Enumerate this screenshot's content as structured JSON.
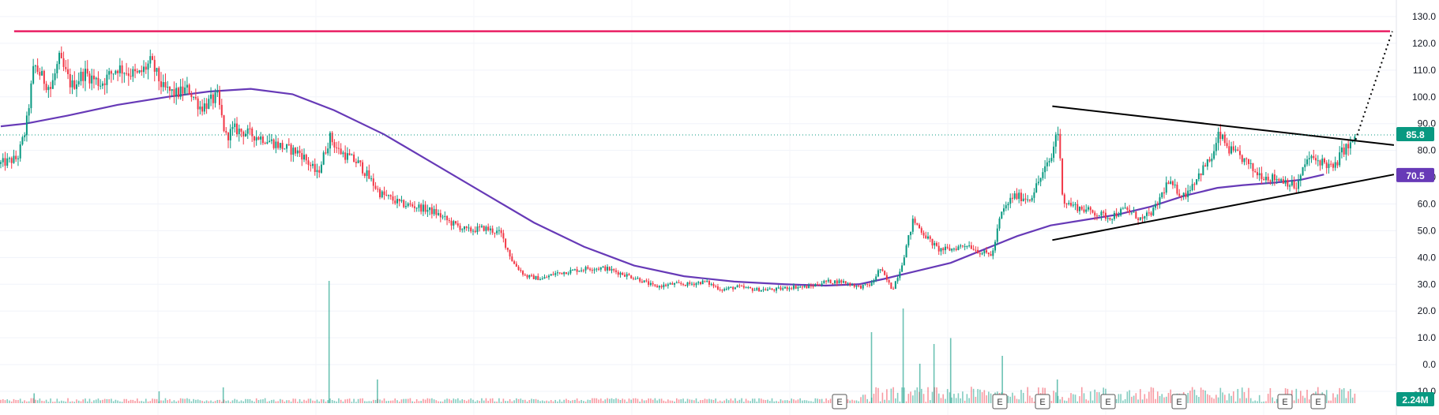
{
  "chart_data": {
    "type": "candlestick",
    "y_axis": {
      "position": "right",
      "ticks": [
        "130.0",
        "120.0",
        "110.0",
        "100.0",
        "90.0",
        "80.0",
        "70.0",
        "60.0",
        "50.0",
        "40.0",
        "30.0",
        "20.0",
        "10.0",
        "0.0",
        "-10.0"
      ],
      "range": [
        -12,
        134
      ]
    },
    "grid": true,
    "last_price": {
      "label": "85.8",
      "value": 85.8,
      "color": "#089981"
    },
    "moving_average": {
      "label": "70.5",
      "value": 70.5,
      "color": "#673ab7",
      "points": [
        [
          0,
          89
        ],
        [
          30,
          90
        ],
        [
          80,
          93
        ],
        [
          140,
          97
        ],
        [
          200,
          100
        ],
        [
          250,
          102
        ],
        [
          300,
          103
        ],
        [
          350,
          101
        ],
        [
          400,
          95
        ],
        [
          460,
          86
        ],
        [
          520,
          75
        ],
        [
          580,
          64
        ],
        [
          640,
          53
        ],
        [
          700,
          44
        ],
        [
          760,
          37
        ],
        [
          820,
          33
        ],
        [
          880,
          31
        ],
        [
          940,
          30
        ],
        [
          990,
          29.5
        ],
        [
          1030,
          30
        ],
        [
          1060,
          32
        ],
        [
          1100,
          35
        ],
        [
          1140,
          38
        ],
        [
          1180,
          43
        ],
        [
          1220,
          48
        ],
        [
          1260,
          52
        ],
        [
          1300,
          54
        ],
        [
          1340,
          56
        ],
        [
          1380,
          59
        ],
        [
          1420,
          63
        ],
        [
          1460,
          66
        ],
        [
          1490,
          67
        ],
        [
          1530,
          68
        ],
        [
          1560,
          69
        ],
        [
          1588,
          71
        ]
      ]
    },
    "volume_badge": {
      "label": "2.24M",
      "color": "#089981"
    },
    "earnings_markers": [
      "E",
      "E",
      "E",
      "E",
      "E",
      "E",
      "E"
    ],
    "colors": {
      "up": "#089981",
      "down": "#f23645",
      "resistance": "#e91e63",
      "trendline": "#000000"
    },
    "resistance_level": 124.5,
    "trendlines": [
      {
        "name": "upper",
        "from": [
          1262,
          96.5
        ],
        "to": [
          1672,
          82
        ]
      },
      {
        "name": "lower",
        "from": [
          1262,
          46.5
        ],
        "to": [
          1672,
          71
        ]
      },
      {
        "name": "projection",
        "from": [
          1626,
          84
        ],
        "to": [
          1670,
          124.5
        ],
        "dashed": true
      }
    ],
    "price_path": [
      [
        0,
        75
      ],
      [
        20,
        77
      ],
      [
        30,
        88
      ],
      [
        40,
        112
      ],
      [
        50,
        107
      ],
      [
        60,
        103
      ],
      [
        70,
        114
      ],
      [
        85,
        104
      ],
      [
        100,
        109
      ],
      [
        120,
        105
      ],
      [
        140,
        111
      ],
      [
        155,
        109
      ],
      [
        165,
        108
      ],
      [
        180,
        113
      ],
      [
        195,
        103
      ],
      [
        210,
        101
      ],
      [
        225,
        103
      ],
      [
        240,
        96
      ],
      [
        260,
        100
      ],
      [
        270,
        85
      ],
      [
        280,
        88
      ],
      [
        300,
        86
      ],
      [
        320,
        84
      ],
      [
        340,
        81
      ],
      [
        360,
        79
      ],
      [
        380,
        71
      ],
      [
        395,
        85
      ],
      [
        405,
        80
      ],
      [
        430,
        75
      ],
      [
        455,
        64
      ],
      [
        480,
        60
      ],
      [
        500,
        59
      ],
      [
        520,
        57
      ],
      [
        540,
        53
      ],
      [
        560,
        50
      ],
      [
        580,
        51
      ],
      [
        600,
        49
      ],
      [
        615,
        38
      ],
      [
        630,
        33
      ],
      [
        650,
        32
      ],
      [
        665,
        34
      ],
      [
        685,
        35
      ],
      [
        705,
        36
      ],
      [
        725,
        36
      ],
      [
        745,
        34
      ],
      [
        765,
        32
      ],
      [
        785,
        29
      ],
      [
        805,
        30
      ],
      [
        825,
        30
      ],
      [
        845,
        31
      ],
      [
        865,
        28
      ],
      [
        885,
        29
      ],
      [
        905,
        28
      ],
      [
        930,
        28
      ],
      [
        950,
        29
      ],
      [
        970,
        29
      ],
      [
        990,
        31
      ],
      [
        1010,
        31
      ],
      [
        1030,
        29
      ],
      [
        1045,
        30
      ],
      [
        1055,
        36
      ],
      [
        1070,
        28
      ],
      [
        1080,
        36
      ],
      [
        1095,
        54
      ],
      [
        1110,
        48
      ],
      [
        1125,
        43
      ],
      [
        1140,
        43
      ],
      [
        1160,
        45
      ],
      [
        1175,
        42
      ],
      [
        1190,
        41
      ],
      [
        1200,
        56
      ],
      [
        1215,
        63
      ],
      [
        1235,
        62
      ],
      [
        1250,
        71
      ],
      [
        1262,
        78
      ],
      [
        1268,
        90
      ],
      [
        1275,
        61
      ],
      [
        1290,
        59
      ],
      [
        1310,
        57
      ],
      [
        1330,
        55
      ],
      [
        1350,
        58
      ],
      [
        1370,
        54
      ],
      [
        1385,
        58
      ],
      [
        1400,
        68
      ],
      [
        1420,
        63
      ],
      [
        1440,
        72
      ],
      [
        1455,
        78
      ],
      [
        1462,
        86
      ],
      [
        1475,
        80
      ],
      [
        1490,
        77
      ],
      [
        1505,
        72
      ],
      [
        1520,
        70
      ],
      [
        1540,
        69
      ],
      [
        1555,
        66
      ],
      [
        1568,
        77
      ],
      [
        1585,
        76
      ],
      [
        1600,
        73
      ],
      [
        1610,
        80
      ],
      [
        1620,
        82
      ],
      [
        1626,
        85.8
      ]
    ],
    "volume_spikes": [
      [
        40,
        0.05
      ],
      [
        190,
        0.06
      ],
      [
        267,
        0.08
      ],
      [
        394,
        0.62
      ],
      [
        452,
        0.12
      ],
      [
        1045,
        0.36
      ],
      [
        1083,
        0.48
      ],
      [
        1103,
        0.2
      ],
      [
        1120,
        0.3
      ],
      [
        1140,
        0.33
      ],
      [
        1202,
        0.24
      ],
      [
        1268,
        0.12
      ]
    ]
  }
}
